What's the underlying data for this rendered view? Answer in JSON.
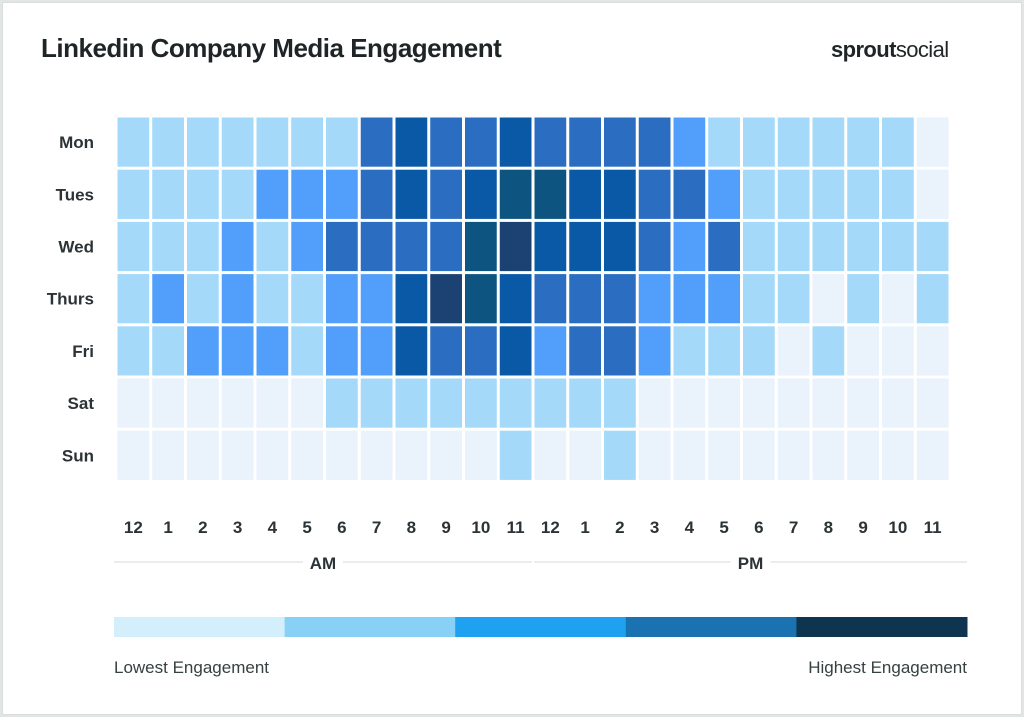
{
  "header": {
    "title": "Linkedin Company Media Engagement",
    "brand_bold": "sprout",
    "brand_light": "social"
  },
  "chart_data": {
    "type": "heatmap",
    "title": "Linkedin Company Media Engagement",
    "rows": [
      "Mon",
      "Tues",
      "Wed",
      "Thurs",
      "Fri",
      "Sat",
      "Sun"
    ],
    "columns": [
      "12",
      "1",
      "2",
      "3",
      "4",
      "5",
      "6",
      "7",
      "8",
      "9",
      "10",
      "11",
      "12",
      "1",
      "2",
      "3",
      "4",
      "5",
      "6",
      "7",
      "8",
      "9",
      "10",
      "11"
    ],
    "column_groups": [
      {
        "label": "AM",
        "span": [
          0,
          11
        ]
      },
      {
        "label": "PM",
        "span": [
          12,
          23
        ]
      }
    ],
    "level_scale": "0 = lowest engagement, 6 = highest engagement",
    "values": [
      [
        1,
        1,
        1,
        1,
        1,
        1,
        1,
        3,
        4,
        3,
        3,
        4,
        3,
        3,
        3,
        3,
        2,
        1,
        1,
        1,
        1,
        1,
        1,
        0
      ],
      [
        1,
        1,
        1,
        1,
        2,
        2,
        2,
        3,
        4,
        3,
        4,
        5,
        5,
        4,
        4,
        3,
        3,
        2,
        1,
        1,
        1,
        1,
        1,
        0
      ],
      [
        1,
        1,
        1,
        2,
        1,
        2,
        3,
        3,
        3,
        3,
        5,
        6,
        4,
        4,
        4,
        3,
        2,
        3,
        1,
        1,
        1,
        1,
        1,
        1
      ],
      [
        1,
        2,
        1,
        2,
        1,
        1,
        2,
        2,
        4,
        6,
        5,
        4,
        3,
        3,
        3,
        2,
        2,
        2,
        1,
        1,
        0,
        1,
        0,
        1
      ],
      [
        1,
        1,
        2,
        2,
        2,
        1,
        2,
        2,
        4,
        3,
        3,
        4,
        2,
        3,
        3,
        2,
        1,
        1,
        1,
        0,
        1,
        0,
        0,
        0
      ],
      [
        0,
        0,
        0,
        0,
        0,
        0,
        1,
        1,
        1,
        1,
        1,
        1,
        1,
        1,
        1,
        0,
        0,
        0,
        0,
        0,
        0,
        0,
        0,
        0
      ],
      [
        0,
        0,
        0,
        0,
        0,
        0,
        0,
        0,
        0,
        0,
        0,
        1,
        0,
        0,
        1,
        0,
        0,
        0,
        0,
        0,
        0,
        0,
        0,
        0
      ]
    ],
    "cell_colors": [
      "#eaf2fc",
      "#a4d9fa",
      "#529ffb",
      "#2b6dc0",
      "#0a59a6",
      "#0d5580",
      "#1b4272"
    ],
    "legend": {
      "colors": [
        "#d4effc",
        "#88d0f6",
        "#1fa1f1",
        "#1a73b0",
        "#0e344f"
      ],
      "low_label": "Lowest Engagement",
      "high_label": "Highest Engagement"
    }
  }
}
